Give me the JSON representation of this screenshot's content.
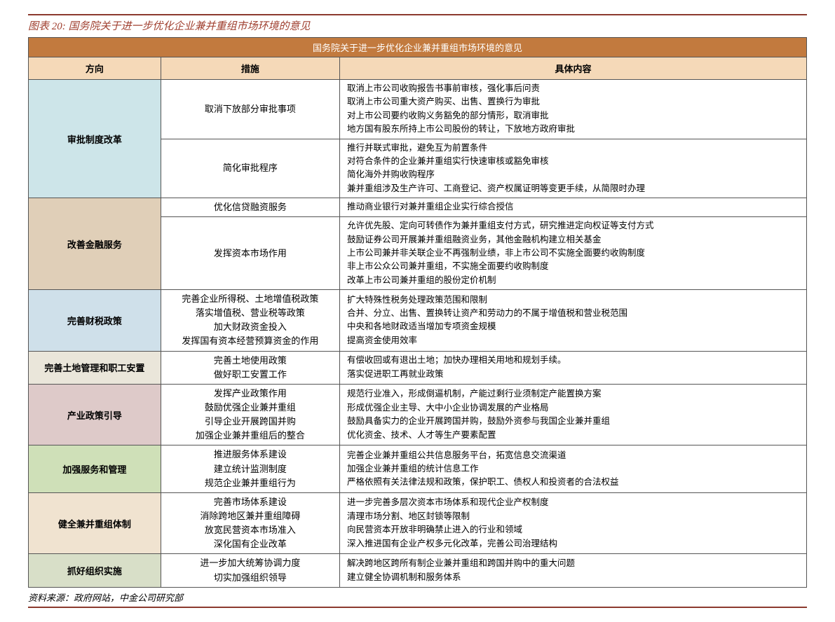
{
  "title": "图表 20: 国务院关于进一步优化企业兼并重组市场环境的意见",
  "banner": "国务院关于进一步优化企业兼并重组市场环境的意见",
  "headers": {
    "c1": "方向",
    "c2": "措施",
    "c3": "具体内容"
  },
  "source": "资料来源：政府网站，中金公司研究部",
  "colors": {
    "r1": "#cde5e9",
    "r2": "#e0cfb8",
    "r3": "#cfe0ea",
    "r4": "#eae6da",
    "r5": "#decac9",
    "r6": "#cfe0b8",
    "r7": "#f0e3d0",
    "r8": "#d8dfc8"
  },
  "rows": [
    {
      "dir": "审批制度改革",
      "colorKey": "r1",
      "groups": [
        {
          "measure": "取消下放部分审批事项",
          "content": "取消上市公司收购报告书事前审核，强化事后问责\n取消上市公司重大资产购买、出售、置换行为审批\n对上市公司要约收购义务豁免的部分情形，取消审批\n地方国有股东所持上市公司股份的转让，下放地方政府审批"
        },
        {
          "measure": "简化审批程序",
          "content": "推行并联式审批，避免互为前置条件\n对符合条件的企业兼并重组实行快速审核或豁免审核\n简化海外并购收购程序\n兼并重组涉及生产许可、工商登记、资产权属证明等变更手续，从简限时办理"
        }
      ]
    },
    {
      "dir": "改善金融服务",
      "colorKey": "r2",
      "groups": [
        {
          "measure": "优化信贷融资服务",
          "content": "推动商业银行对兼并重组企业实行综合授信"
        },
        {
          "measure": "发挥资本市场作用",
          "content": "允许优先股、定向可转债作为兼并重组支付方式，研究推进定向权证等支付方式\n鼓励证券公司开展兼并重组融资业务，其他金融机构建立相关基金\n上市公司兼并非关联企业不再强制业绩，非上市公司不实施全面要约收购制度\n非上市公众公司兼并重组，不实施全面要约收购制度\n改革上市公司兼并重组的股份定价机制"
        }
      ]
    },
    {
      "dir": "完善财税政策",
      "colorKey": "r3",
      "groups": [
        {
          "measure": "完善企业所得税、土地增值税政策\n落实增值税、营业税等政策\n加大财政资金投入\n发挥国有资本经营预算资金的作用",
          "content": "扩大特殊性税务处理政策范围和限制\n合并、分立、出售、置换转让资产和劳动力的不属于增值税和营业税范围\n中央和各地财政适当增加专项资金规模\n提高资金使用效率"
        }
      ]
    },
    {
      "dir": "完善土地管理和职工安置",
      "colorKey": "r4",
      "groups": [
        {
          "measure": "完善土地使用政策\n做好职工安置工作",
          "content": "有偿收回或有退出土地；加快办理相关用地和规划手续。\n落实促进职工再就业政策"
        }
      ]
    },
    {
      "dir": "产业政策引导",
      "colorKey": "r5",
      "groups": [
        {
          "measure": "发挥产业政策作用\n鼓励优强企业兼并重组\n引导企业开展跨国并购\n加强企业兼并重组后的整合",
          "content": "规范行业准入，形成倒逼机制，产能过剩行业须制定产能置换方案\n形成优强企业主导、大中小企业协调发展的产业格局\n鼓励具备实力的企业开展跨国并购，鼓励外资参与我国企业兼并重组\n优化资金、技术、人才等生产要素配置"
        }
      ]
    },
    {
      "dir": "加强服务和管理",
      "colorKey": "r6",
      "groups": [
        {
          "measure": "推进服务体系建设\n建立统计监测制度\n规范企业兼并重组行为",
          "content": "完善企业兼并重组公共信息服务平台，拓宽信息交流渠道\n加强企业兼并重组的统计信息工作\n严格依照有关法律法规和政策，保护职工、债权人和投资者的合法权益"
        }
      ]
    },
    {
      "dir": "健全兼并重组体制",
      "colorKey": "r7",
      "groups": [
        {
          "measure": "完善市场体系建设\n消除跨地区兼并重组障碍\n放宽民营资本市场准入\n深化国有企业改革",
          "content": "进一步完善多层次资本市场体系和现代企业产权制度\n清理市场分割、地区封锁等限制\n向民营资本开放非明确禁止进入的行业和领域\n深入推进国有企业产权多元化改革，完善公司治理结构"
        }
      ]
    },
    {
      "dir": "抓好组织实施",
      "colorKey": "r8",
      "groups": [
        {
          "measure": "进一步加大统筹协调力度\n切实加强组织领导",
          "content": "解决跨地区跨所有制企业兼并重组和跨国并购中的重大问题\n建立健全协调机制和服务体系"
        }
      ]
    }
  ]
}
